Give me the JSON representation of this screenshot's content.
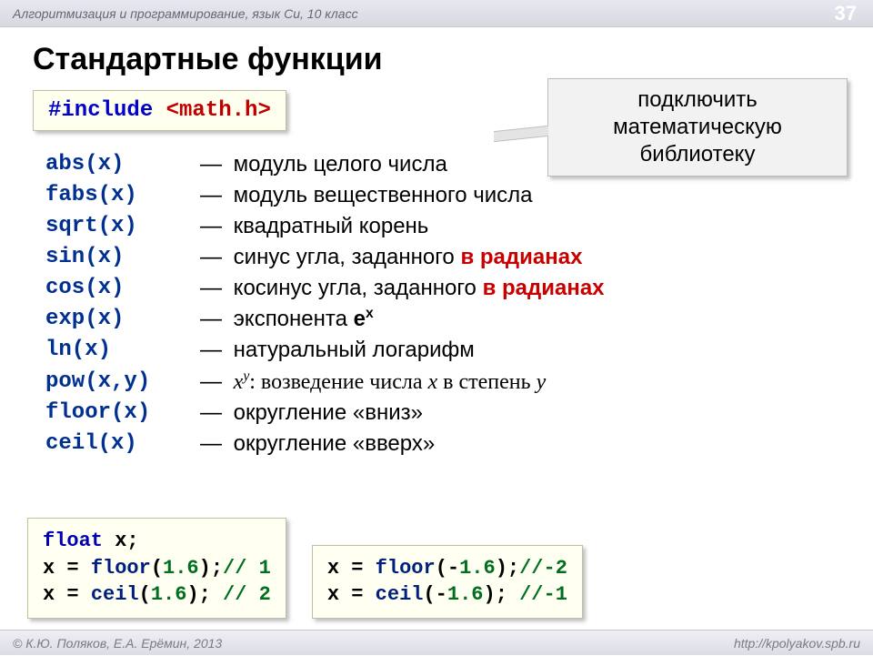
{
  "header": {
    "subject": "Алгоритмизация и программирование, язык Си, 10 класс",
    "pageNumber": "37"
  },
  "footer": {
    "copyright": "© К.Ю. Поляков, Е.А. Ерёмин, 2013",
    "url": "http://kpolyakov.spb.ru"
  },
  "title": "Стандартные функции",
  "include": {
    "keyword": "#include",
    "header": "<math.h>"
  },
  "callout": {
    "line1": "подключить",
    "line2": "математическую",
    "line3": "библиотеку"
  },
  "functions": [
    {
      "name": "abs(x)",
      "desc_plain": "модуль целого числа"
    },
    {
      "name": "fabs(x)",
      "desc_plain": "модуль вещественного числа"
    },
    {
      "name": "sqrt(x)",
      "desc_plain": "квадратный корень"
    },
    {
      "name": "sin(x)",
      "desc_pre": "синус угла, заданного ",
      "desc_red": "в радианах"
    },
    {
      "name": "cos(x)",
      "desc_pre": "косинус угла, заданного ",
      "desc_red": "в радианах"
    },
    {
      "name": "exp(x)",
      "desc_html": "экспонента <b>e<sup>x</sup></b>"
    },
    {
      "name": "ln(x)",
      "desc_plain": "натуральный логарифм"
    },
    {
      "name": "pow(x,y)",
      "desc_html_serif": "<i>x</i><sup><i>y</i></sup>: возведение числа <i>x</i> в степень <i>y</i>"
    },
    {
      "name": "floor(x)",
      "desc_plain": "округление «вниз»"
    },
    {
      "name": "ceil(x)",
      "desc_plain": "округление «вверх»"
    }
  ],
  "example_left": {
    "l1_type": "float",
    "l1_rest": " x;",
    "l2_a": "x = ",
    "l2_fn": "floor",
    "l2_b": "(",
    "l2_num": "1.6",
    "l2_c": ");",
    "l2_comment": "// 1",
    "l3_a": "x = ",
    "l3_fn": "ceil",
    "l3_b": "(",
    "l3_num": "1.6",
    "l3_c": "); ",
    "l3_comment": "// 2"
  },
  "example_right": {
    "l1_a": "x = ",
    "l1_fn": "floor",
    "l1_b": "(-",
    "l1_num": "1.6",
    "l1_c": ");",
    "l1_comment": "//-2",
    "l2_a": "x = ",
    "l2_fn": "ceil",
    "l2_b": "(-",
    "l2_num": "1.6",
    "l2_c": "); ",
    "l2_comment": "//-1"
  },
  "colors": {
    "page_bg": "#ffffff",
    "codebox_bg": "#fffff2",
    "codebox_border": "#c0c0a0",
    "callout_bg": "#f2f2f2",
    "kw_blue": "#0000c8",
    "kw_red": "#c00000",
    "func_name": "#003090",
    "red_text": "#c80000",
    "code_num": "#007020"
  }
}
